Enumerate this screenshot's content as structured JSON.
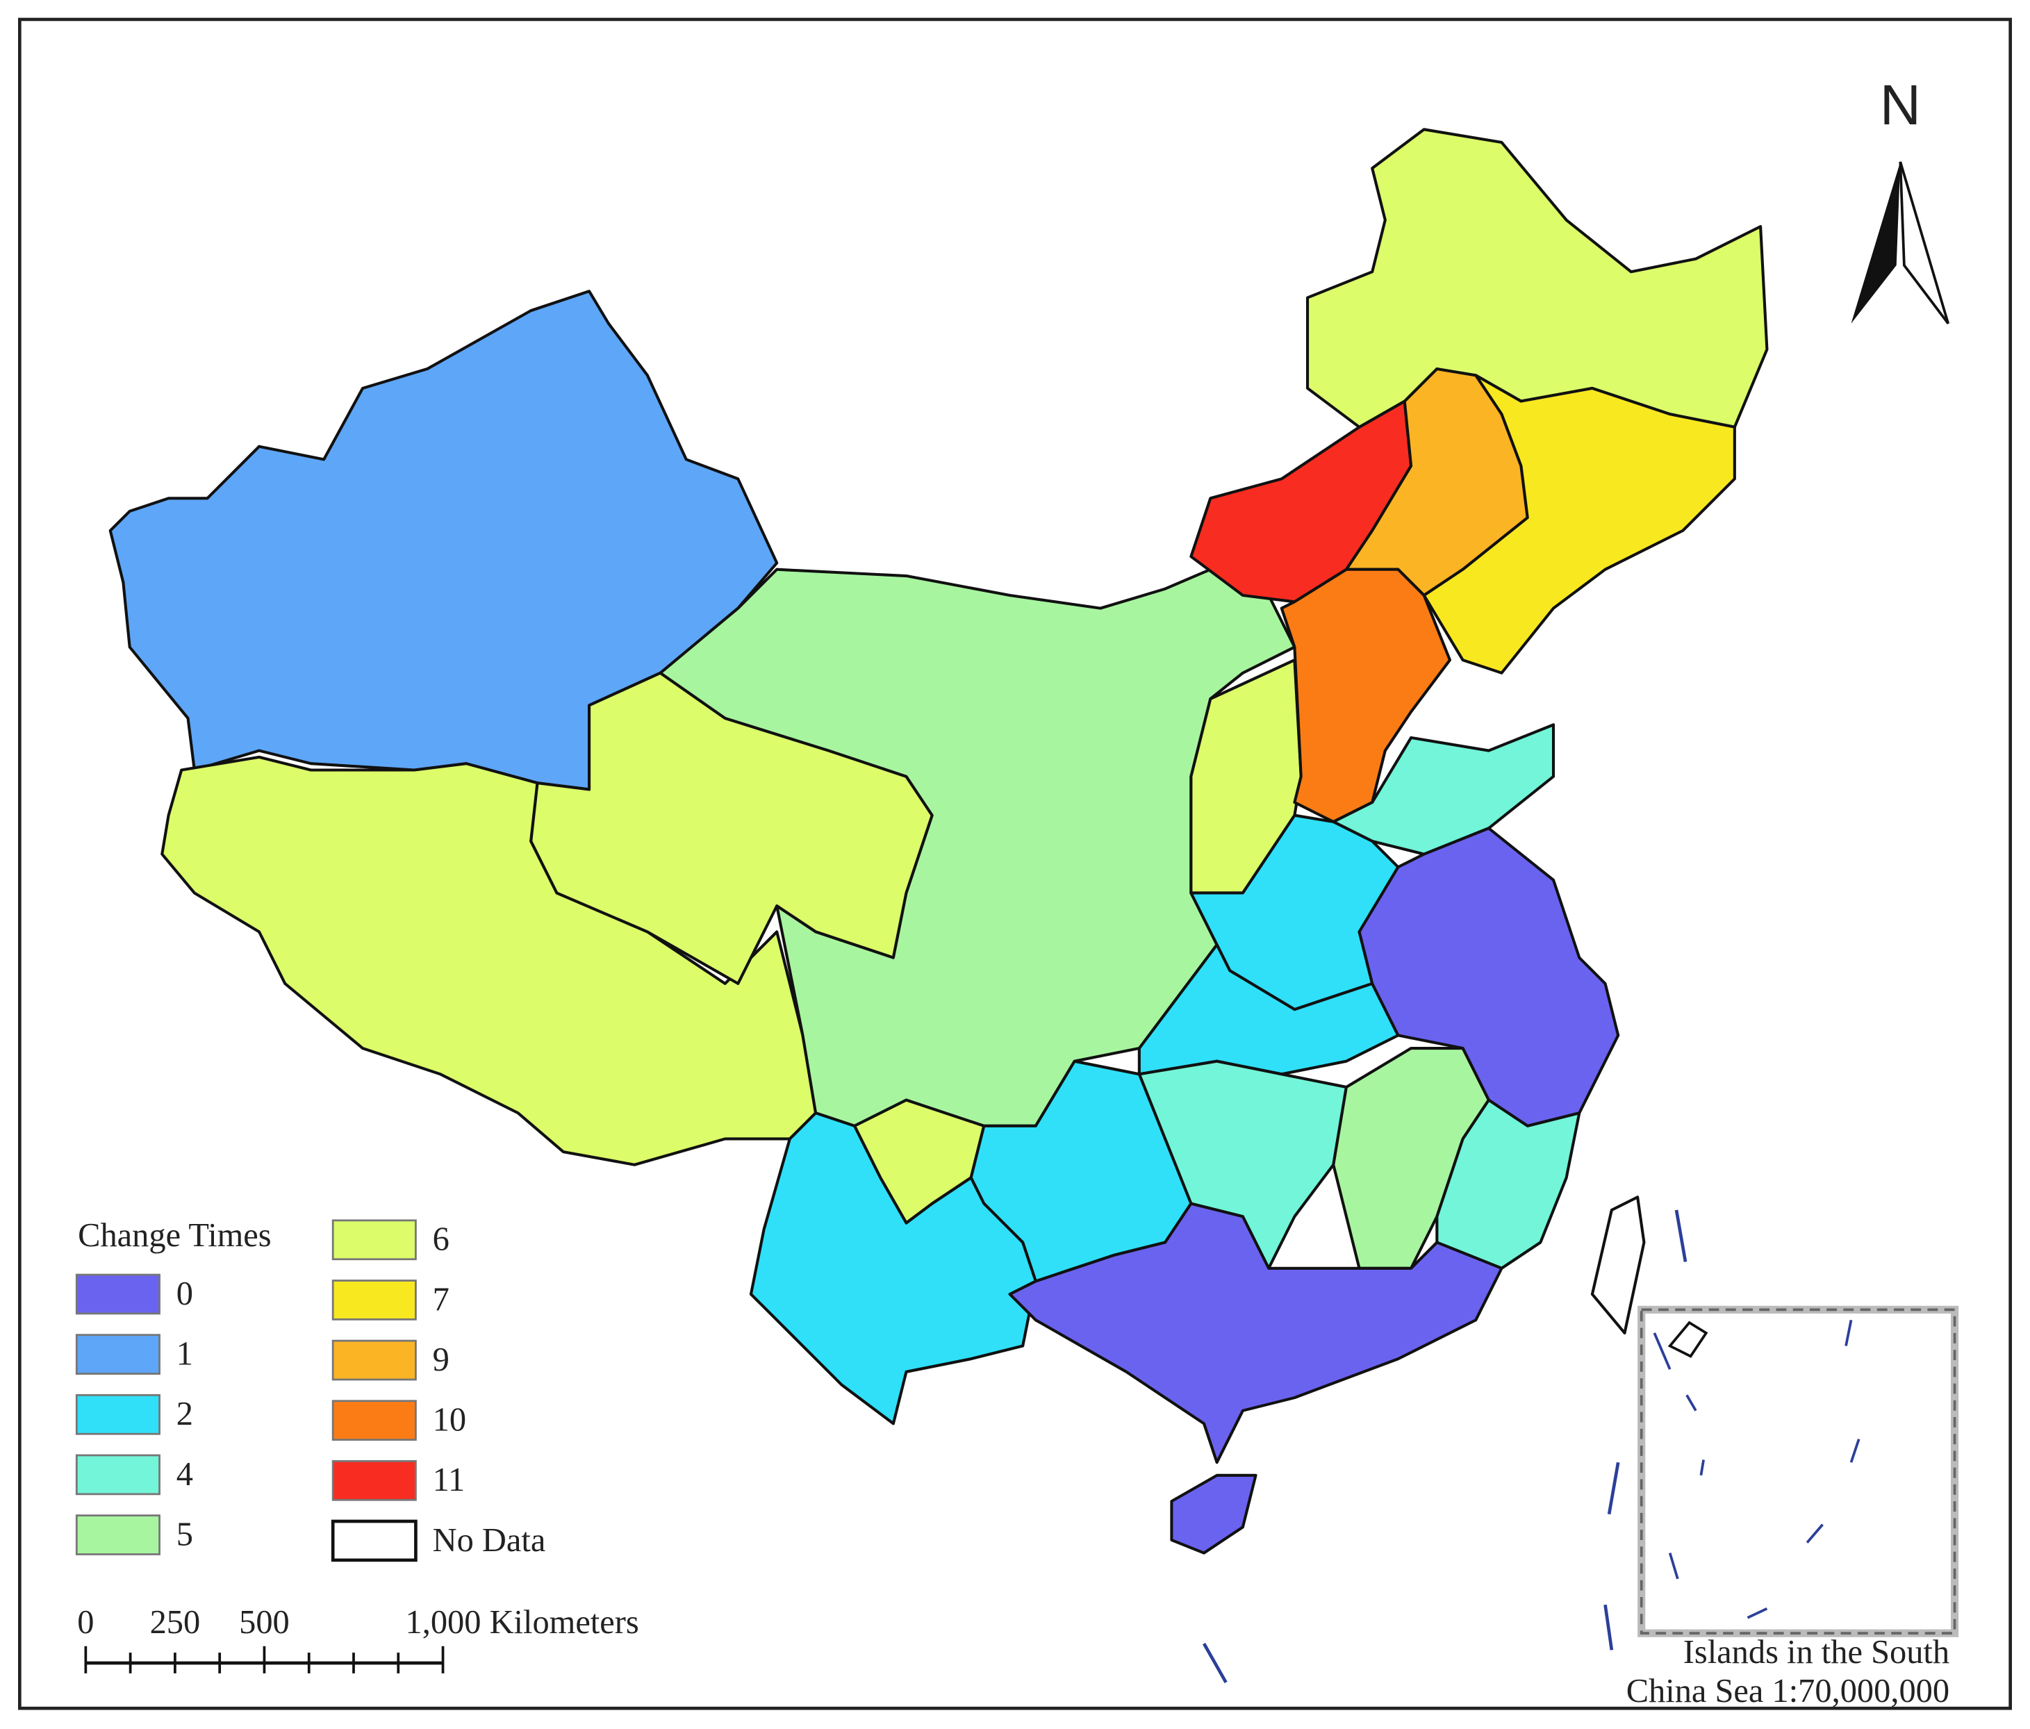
{
  "north": "N",
  "legend": {
    "title": "Change Times",
    "items": [
      {
        "label": "0",
        "color": "#6a63f0"
      },
      {
        "label": "1",
        "color": "#5ea6f8"
      },
      {
        "label": "2",
        "color": "#2fe0f8"
      },
      {
        "label": "4",
        "color": "#72f5d8"
      },
      {
        "label": "5",
        "color": "#a8f5a0"
      },
      {
        "label": "6",
        "color": "#dcfc6a"
      },
      {
        "label": "7",
        "color": "#f8e820"
      },
      {
        "label": "9",
        "color": "#fbb424"
      },
      {
        "label": "10",
        "color": "#fb7c14"
      },
      {
        "label": "11",
        "color": "#f82c20"
      },
      {
        "label": "No Data",
        "color": "#ffffff"
      }
    ]
  },
  "scale_bar": {
    "labels": [
      "0",
      "250",
      "500",
      "1,000 Kilometers"
    ]
  },
  "inset": {
    "caption": [
      "Islands in the South",
      "China Sea 1:70,000,000"
    ]
  }
}
